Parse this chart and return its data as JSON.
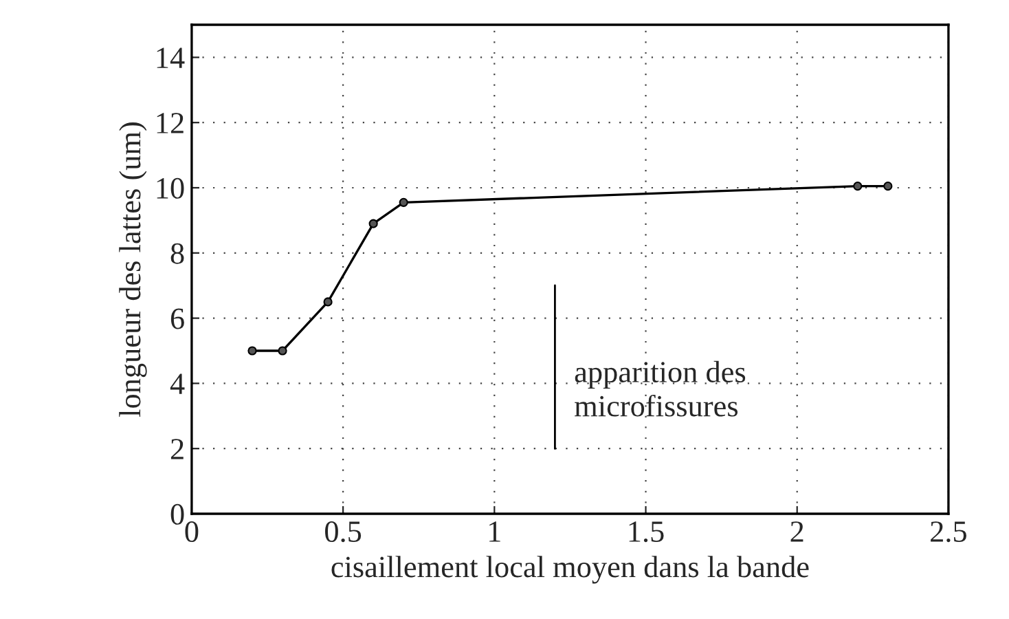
{
  "chart_data": {
    "type": "line",
    "xlabel": "cisaillement local moyen dans la bande",
    "ylabel": "longueur des lattes (um)",
    "x": [
      0.2,
      0.3,
      0.45,
      0.6,
      0.7,
      2.2,
      2.3
    ],
    "series": [
      {
        "color": "#000000",
        "values": [
          5,
          5,
          6.5,
          8.9,
          9.55,
          10.05,
          10.05
        ]
      }
    ],
    "xlim": [
      0,
      2.5
    ],
    "xticks": [
      0,
      0.5,
      1,
      1.5,
      2,
      2.5
    ],
    "ylim": [
      0,
      15
    ],
    "yticks": [
      0,
      2,
      4,
      6,
      8,
      10,
      12,
      14
    ],
    "grid": true,
    "marker": "circle",
    "line_style": "solid",
    "ref_lines": [
      {
        "axis": "x",
        "value": 1.2,
        "label": "apparition des\nmicrofissures",
        "color": "#000000"
      }
    ]
  }
}
